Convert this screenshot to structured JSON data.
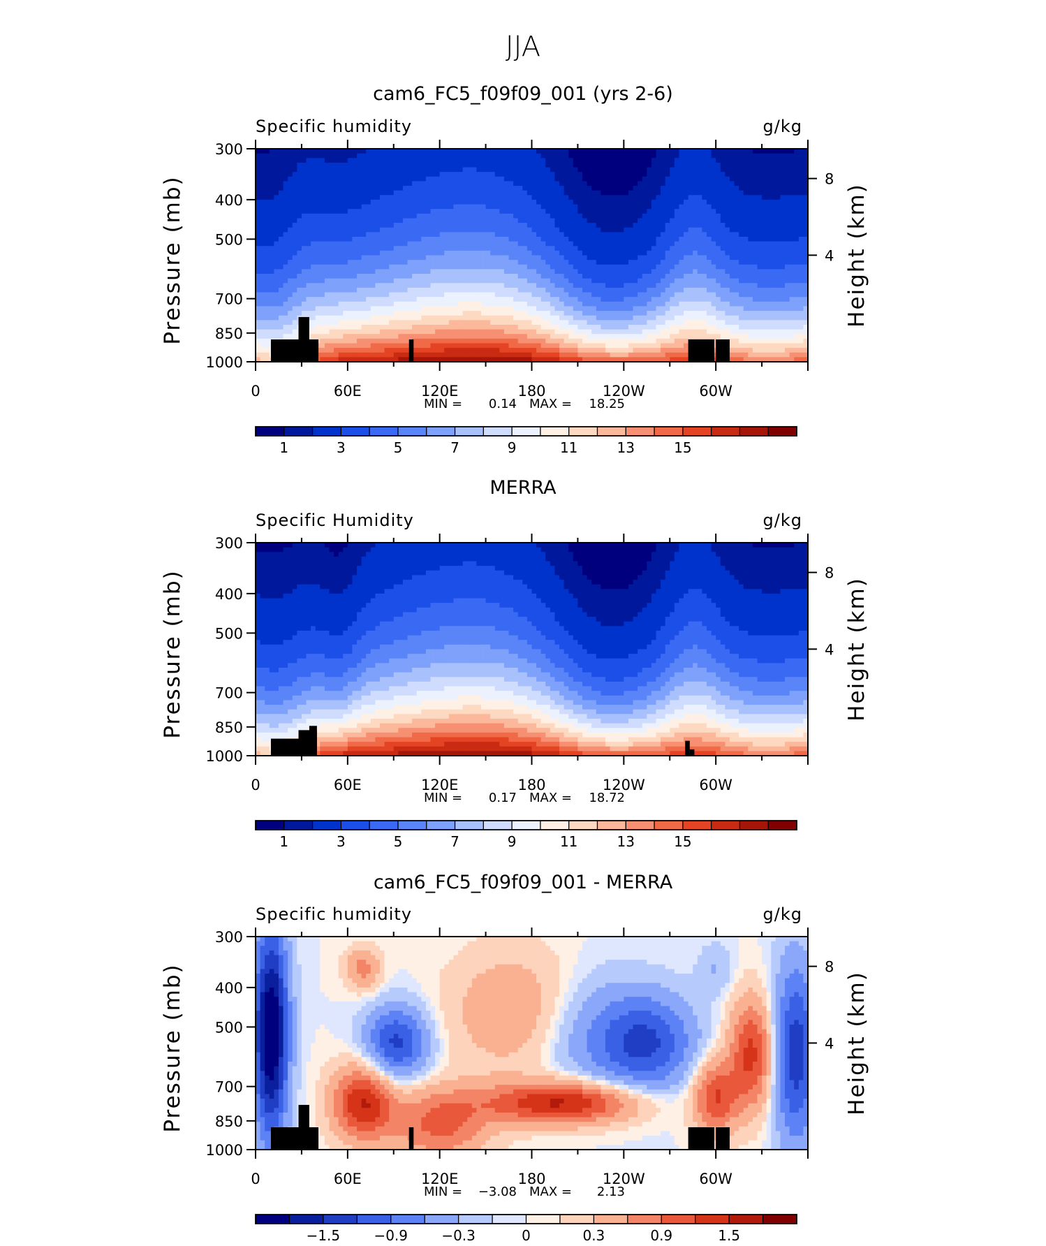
{
  "figure": {
    "title": "JJA"
  },
  "colormaps": {
    "abs": [
      "#00007f",
      "#00189c",
      "#0033cc",
      "#1c4ee8",
      "#3a6af4",
      "#5a85f8",
      "#7ea1fb",
      "#a8c0fc",
      "#cfdcfd",
      "#ecf1fe",
      "#fff0e6",
      "#fdd9c2",
      "#fbb89a",
      "#f79072",
      "#f06a48",
      "#e44424",
      "#c92b12",
      "#a51508",
      "#800000"
    ],
    "diff": [
      "#00007f",
      "#0a1f9d",
      "#1f3ec4",
      "#3a60e6",
      "#5d82f5",
      "#8aa7fa",
      "#b7cafc",
      "#dfe7fe",
      "#fff0e6",
      "#fdd3bc",
      "#fab192",
      "#f48466",
      "#e9583a",
      "#d63418",
      "#b21a0b",
      "#800000"
    ]
  },
  "panels": [
    {
      "title": "cam6_FC5_f09f09_001 (yrs 2-6)",
      "left_label": "Specific humidity",
      "right_label": "g/kg",
      "ylabel": "Pressure (mb)",
      "y2label": "Height (km)",
      "yticks": [
        "300",
        "400",
        "500",
        "700",
        "850",
        "1000"
      ],
      "y2ticks": [
        "8",
        "4"
      ],
      "xticks": [
        "0",
        "60E",
        "120E",
        "180",
        "120W",
        "60W"
      ],
      "stats": {
        "min_label": "MIN =",
        "min": "0.14",
        "max_label": "MAX =",
        "max": "18.25"
      },
      "colorbar_labels": [
        "1",
        "3",
        "5",
        "7",
        "9",
        "11",
        "13",
        "15"
      ],
      "chart_data": {
        "type": "heatmap",
        "x_range": [
          0,
          360
        ],
        "y_range_mb": [
          1000,
          300
        ],
        "colormap": "abs",
        "levels": [
          0.5,
          1,
          2,
          3,
          4,
          5,
          6,
          7,
          8,
          9,
          10,
          11,
          12,
          13,
          14,
          15,
          16,
          17
        ],
        "min": 0.14,
        "max": 18.25
      }
    },
    {
      "title": "MERRA",
      "left_label": "Specific Humidity",
      "right_label": "g/kg",
      "ylabel": "Pressure (mb)",
      "y2label": "Height (km)",
      "yticks": [
        "300",
        "400",
        "500",
        "700",
        "850",
        "1000"
      ],
      "y2ticks": [
        "8",
        "4"
      ],
      "xticks": [
        "0",
        "60E",
        "120E",
        "180",
        "120W",
        "60W"
      ],
      "stats": {
        "min_label": "MIN =",
        "min": "0.17",
        "max_label": "MAX =",
        "max": "18.72"
      },
      "colorbar_labels": [
        "1",
        "3",
        "5",
        "7",
        "9",
        "11",
        "13",
        "15"
      ],
      "chart_data": {
        "type": "heatmap",
        "x_range": [
          0,
          360
        ],
        "y_range_mb": [
          1000,
          300
        ],
        "colormap": "abs",
        "levels": [
          0.5,
          1,
          2,
          3,
          4,
          5,
          6,
          7,
          8,
          9,
          10,
          11,
          12,
          13,
          14,
          15,
          16,
          17
        ],
        "min": 0.17,
        "max": 18.72
      }
    },
    {
      "title": "cam6_FC5_f09f09_001 - MERRA",
      "left_label": "Specific humidity",
      "right_label": "g/kg",
      "ylabel": "Pressure (mb)",
      "y2label": "Height (km)",
      "yticks": [
        "300",
        "400",
        "500",
        "700",
        "850",
        "1000"
      ],
      "y2ticks": [
        "8",
        "4"
      ],
      "xticks": [
        "0",
        "60E",
        "120E",
        "180",
        "120W",
        "60W"
      ],
      "stats": {
        "min_label": "MIN =",
        "min": "−3.08",
        "max_label": "MAX =",
        "max": "2.13"
      },
      "colorbar_labels": [
        "−1.5",
        "−0.9",
        "−0.3",
        "0",
        "0.3",
        "0.9",
        "1.5"
      ],
      "chart_data": {
        "type": "heatmap",
        "x_range": [
          0,
          360
        ],
        "y_range_mb": [
          1000,
          300
        ],
        "colormap": "diff",
        "levels": [
          -1.8,
          -1.5,
          -1.2,
          -0.9,
          -0.6,
          -0.3,
          -0.1,
          0,
          0.1,
          0.3,
          0.6,
          0.9,
          1.2,
          1.5,
          1.8
        ],
        "min": -3.08,
        "max": 2.13
      }
    }
  ]
}
